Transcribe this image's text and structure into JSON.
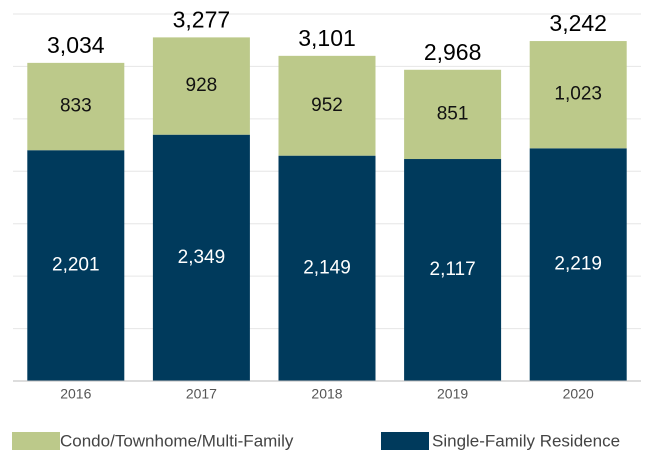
{
  "chart_data": {
    "type": "stacked_bar",
    "categories": [
      "2016",
      "2017",
      "2018",
      "2019",
      "2020"
    ],
    "series": [
      {
        "name": "Single-Family Residence",
        "color": "#003a5c",
        "values": [
          2201,
          2349,
          2149,
          2117,
          2219
        ],
        "value_labels": [
          "2,201",
          "2,349",
          "2,149",
          "2,117",
          "2,219"
        ]
      },
      {
        "name": "Condo/Townhome/Multi-Family",
        "color": "#bcc98a",
        "values": [
          833,
          928,
          952,
          851,
          1023
        ],
        "value_labels": [
          "833",
          "928",
          "952",
          "851",
          "1,023"
        ]
      }
    ],
    "total_labels": [
      "3,034",
      "3,277",
      "3,101",
      "2,968",
      "3,242"
    ],
    "ylim": [
      0,
      3500
    ],
    "yticks": [
      0,
      500,
      1000,
      1500,
      2000,
      2500,
      3000,
      3500
    ],
    "grid": true
  }
}
